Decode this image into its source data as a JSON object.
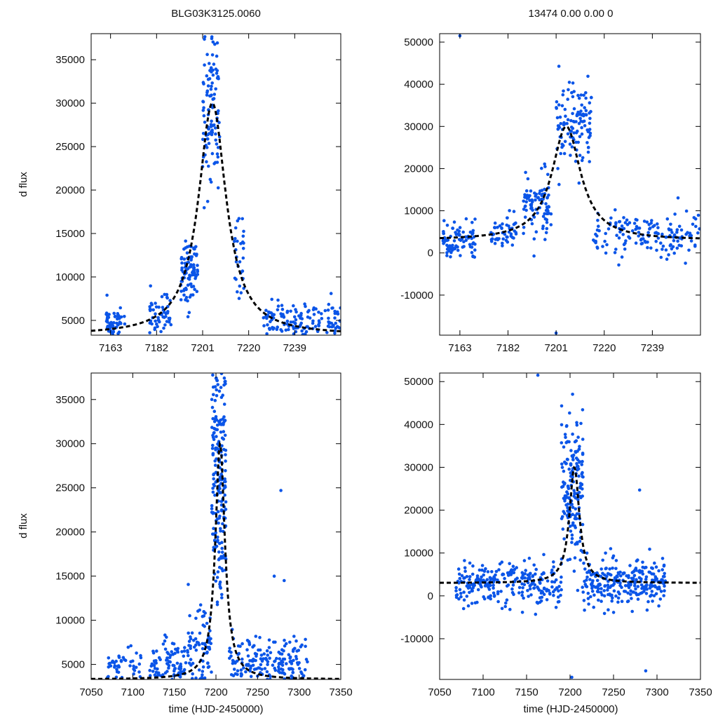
{
  "colors": {
    "points": "#0b55e8",
    "fit": "#000000",
    "frame": "#000000"
  },
  "chart_data": [
    {
      "id": "top-left",
      "type": "scatter",
      "title": "BLG03K3125.0060",
      "xlabel": "",
      "ylabel": "d flux",
      "xlim": [
        7155,
        7258
      ],
      "ylim": [
        3300,
        38000
      ],
      "xticks": [
        7163,
        7182,
        7201,
        7220,
        7239
      ],
      "yticks": [
        5000,
        10000,
        15000,
        20000,
        25000,
        30000,
        35000
      ],
      "fit": {
        "t0": 7205,
        "tE": 12,
        "base": 3300,
        "peak": 30000
      },
      "seed": 11,
      "segments": [
        {
          "x0": 7161,
          "x1": 7169,
          "n": 60,
          "yc": 4700,
          "ys": 900
        },
        {
          "x0": 7179,
          "x1": 7188,
          "n": 55,
          "yc": 5600,
          "ys": 1100
        },
        {
          "x0": 7192,
          "x1": 7199,
          "n": 90,
          "yc": 10500,
          "ys": 2000
        },
        {
          "x0": 7201,
          "x1": 7208,
          "n": 110,
          "yc": 29500,
          "ys": 5000
        },
        {
          "x0": 7214,
          "x1": 7218,
          "n": 30,
          "yc": 12500,
          "ys": 2500
        },
        {
          "x0": 7226,
          "x1": 7258,
          "n": 140,
          "yc": 5000,
          "ys": 1100
        }
      ]
    },
    {
      "id": "top-right",
      "type": "scatter",
      "title": "13474  0.00  0.00  0",
      "xlabel": "",
      "ylabel": "",
      "xlim": [
        7155,
        7258
      ],
      "ylim": [
        -19500,
        52000
      ],
      "xticks": [
        7163,
        7182,
        7201,
        7220,
        7239
      ],
      "yticks": [
        -10000,
        0,
        10000,
        20000,
        30000,
        40000,
        50000
      ],
      "fit": {
        "t0": 7205,
        "tE": 12,
        "base": 3000,
        "peak": 30000
      },
      "seed": 23,
      "segments": [
        {
          "x0": 7156,
          "x1": 7169,
          "n": 80,
          "yc": 3500,
          "ys": 2000
        },
        {
          "x0": 7175,
          "x1": 7186,
          "n": 50,
          "yc": 5000,
          "ys": 2000
        },
        {
          "x0": 7188,
          "x1": 7199,
          "n": 90,
          "yc": 12000,
          "ys": 3500
        },
        {
          "x0": 7201,
          "x1": 7215,
          "n": 120,
          "yc": 30000,
          "ys": 5000
        },
        {
          "x0": 7215,
          "x1": 7258,
          "n": 150,
          "yc": 4500,
          "ys": 2500
        }
      ],
      "extras": [
        {
          "x": 7163,
          "y": 51500
        },
        {
          "x": 7201,
          "y": -19000
        }
      ]
    },
    {
      "id": "bottom-left",
      "type": "scatter",
      "title": "",
      "xlabel": "time (HJD-2450000)",
      "ylabel": "d flux",
      "xlim": [
        7050,
        7350
      ],
      "ylim": [
        3300,
        38000
      ],
      "xticks": [
        7050,
        7100,
        7150,
        7200,
        7250,
        7300,
        7350
      ],
      "yticks": [
        5000,
        10000,
        15000,
        20000,
        25000,
        30000,
        35000
      ],
      "fit": {
        "t0": 7205,
        "tE": 12,
        "base": 3300,
        "peak": 30000
      },
      "seed": 37,
      "segments": [
        {
          "x0": 7068,
          "x1": 7110,
          "n": 50,
          "yc": 4200,
          "ys": 1200
        },
        {
          "x0": 7120,
          "x1": 7165,
          "n": 110,
          "yc": 4500,
          "ys": 1800
        },
        {
          "x0": 7165,
          "x1": 7195,
          "n": 80,
          "yc": 6500,
          "ys": 2500
        },
        {
          "x0": 7195,
          "x1": 7212,
          "n": 220,
          "yc": 27000,
          "ys": 7000
        },
        {
          "x0": 7215,
          "x1": 7310,
          "n": 220,
          "yc": 4800,
          "ys": 1800
        }
      ],
      "extras": [
        {
          "x": 7278,
          "y": 24700
        },
        {
          "x": 7270,
          "y": 15000
        },
        {
          "x": 7282,
          "y": 14500
        }
      ]
    },
    {
      "id": "bottom-right",
      "type": "scatter",
      "title": "",
      "xlabel": "time (HJD-2450000)",
      "ylabel": "",
      "xlim": [
        7050,
        7350
      ],
      "ylim": [
        -19500,
        52000
      ],
      "xticks": [
        7050,
        7100,
        7150,
        7200,
        7250,
        7300,
        7350
      ],
      "yticks": [
        -10000,
        0,
        10000,
        20000,
        30000,
        40000,
        50000
      ],
      "fit": {
        "t0": 7205,
        "tE": 12,
        "base": 3000,
        "peak": 30000
      },
      "seed": 53,
      "segments": [
        {
          "x0": 7068,
          "x1": 7190,
          "n": 260,
          "yc": 2800,
          "ys": 2500
        },
        {
          "x0": 7190,
          "x1": 7215,
          "n": 180,
          "yc": 25000,
          "ys": 9000
        },
        {
          "x0": 7215,
          "x1": 7310,
          "n": 260,
          "yc": 3200,
          "ys": 2800
        }
      ],
      "extras": [
        {
          "x": 7163,
          "y": 51500
        },
        {
          "x": 7202,
          "y": -19000
        },
        {
          "x": 7280,
          "y": 24700
        },
        {
          "x": 7287,
          "y": -17500
        }
      ]
    }
  ]
}
